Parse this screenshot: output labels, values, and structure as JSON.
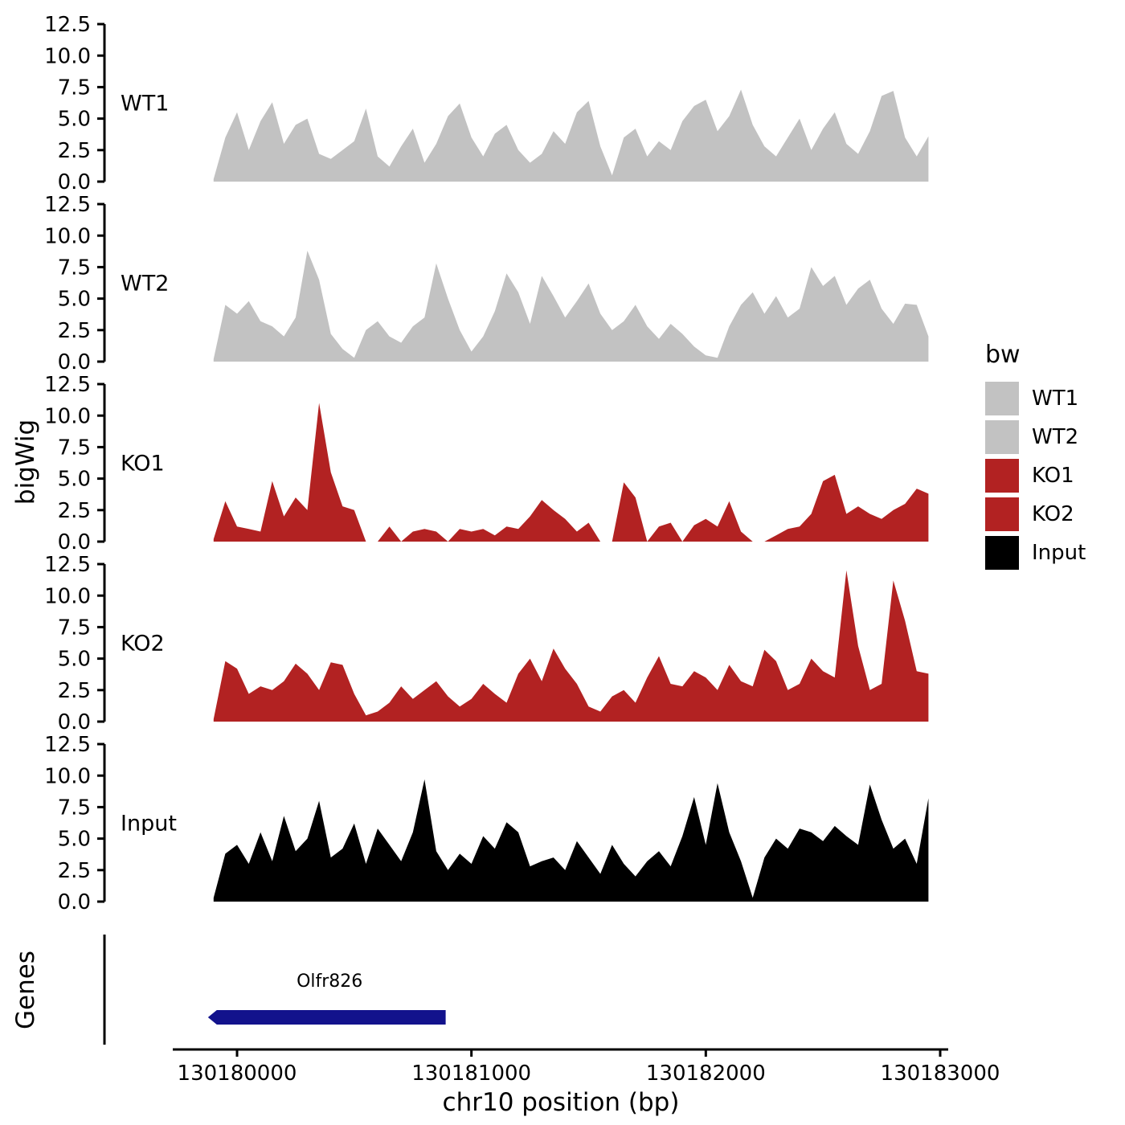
{
  "labels": {
    "y_axis_title": "bigWig",
    "genes_title": "Genes"
  },
  "x_axis": {
    "title": "chr10 position (bp)",
    "tick_positions": [
      130180000,
      130181000,
      130182000,
      130183000
    ],
    "tick_labels": [
      "130180000",
      "130181000",
      "130182000",
      "130183000"
    ]
  },
  "y_axis": {
    "tick_values": [
      0,
      2.5,
      5,
      7.5,
      10,
      12.5
    ],
    "tick_labels": [
      "0.0",
      "2.5",
      "5.0",
      "7.5",
      "10.0",
      "12.5"
    ]
  },
  "legend": {
    "title": "bw",
    "items": [
      {
        "label": "WT1",
        "color": "#c2c2c2"
      },
      {
        "label": "WT2",
        "color": "#c2c2c2"
      },
      {
        "label": "KO1",
        "color": "#b22222"
      },
      {
        "label": "KO2",
        "color": "#b22222"
      },
      {
        "label": "Input",
        "color": "#000000"
      }
    ]
  },
  "chart_data": {
    "type": "area",
    "title": "",
    "xlabel": "chr10 position (bp)",
    "ylabel": "bigWig",
    "ylim": [
      0,
      12.5
    ],
    "xlim": [
      130179700,
      130183100
    ],
    "xticks": [
      130180000,
      130181000,
      130182000,
      130183000
    ],
    "x_start": 130179900,
    "x_step": 50,
    "tracks": [
      {
        "name": "WT1",
        "color": "#c2c2c2",
        "values": [
          0.2,
          3.5,
          5.5,
          2.5,
          4.8,
          6.3,
          3.0,
          4.5,
          5.0,
          2.2,
          1.8,
          2.5,
          3.2,
          5.8,
          2.0,
          1.2,
          2.8,
          4.2,
          1.5,
          3.0,
          5.2,
          6.2,
          3.5,
          2.0,
          3.8,
          4.5,
          2.5,
          1.5,
          2.2,
          4.0,
          3.0,
          5.5,
          6.4,
          2.8,
          0.5,
          3.5,
          4.2,
          2.0,
          3.2,
          2.5,
          4.8,
          6.0,
          6.5,
          4.0,
          5.2,
          7.3,
          4.5,
          2.8,
          2.0,
          3.5,
          5.0,
          2.5,
          4.2,
          5.5,
          3.0,
          2.2,
          4.0,
          6.8,
          7.2,
          3.5,
          2.0,
          3.6
        ]
      },
      {
        "name": "WT2",
        "color": "#c2c2c2",
        "values": [
          0.2,
          4.5,
          3.8,
          4.8,
          3.2,
          2.8,
          2.0,
          3.5,
          8.8,
          6.5,
          2.2,
          1.0,
          0.3,
          2.5,
          3.2,
          2.0,
          1.5,
          2.8,
          3.5,
          7.8,
          5.0,
          2.5,
          0.8,
          2.0,
          4.0,
          7.0,
          5.5,
          3.0,
          6.8,
          5.2,
          3.5,
          4.8,
          6.2,
          3.8,
          2.5,
          3.2,
          4.5,
          2.8,
          1.8,
          3.0,
          2.2,
          1.2,
          0.5,
          0.3,
          2.8,
          4.5,
          5.5,
          3.8,
          5.2,
          3.5,
          4.2,
          7.5,
          6.0,
          6.8,
          4.5,
          5.8,
          6.5,
          4.2,
          3.0,
          4.6,
          4.5,
          2.0
        ]
      },
      {
        "name": "KO1",
        "color": "#b22222",
        "values": [
          0.2,
          3.2,
          1.2,
          1.0,
          0.8,
          4.8,
          2.0,
          3.5,
          2.5,
          11.0,
          5.5,
          2.8,
          2.5,
          0.0,
          0.0,
          1.2,
          0.0,
          0.8,
          1.0,
          0.8,
          0.0,
          1.0,
          0.8,
          1.0,
          0.5,
          1.2,
          1.0,
          2.0,
          3.3,
          2.5,
          1.8,
          0.8,
          1.5,
          0.0,
          0.0,
          4.7,
          3.5,
          0.0,
          1.2,
          1.5,
          0.0,
          1.3,
          1.8,
          1.2,
          3.2,
          0.8,
          0.0,
          0.0,
          0.5,
          1.0,
          1.2,
          2.2,
          4.8,
          5.3,
          2.2,
          2.8,
          2.2,
          1.8,
          2.5,
          3.0,
          4.2,
          3.8
        ]
      },
      {
        "name": "KO2",
        "color": "#b22222",
        "values": [
          0.2,
          4.8,
          4.2,
          2.2,
          2.8,
          2.5,
          3.2,
          4.6,
          3.8,
          2.5,
          4.7,
          4.5,
          2.2,
          0.5,
          0.8,
          1.5,
          2.8,
          1.8,
          2.5,
          3.2,
          2.0,
          1.2,
          1.8,
          3.0,
          2.2,
          1.5,
          3.8,
          5.0,
          3.2,
          5.8,
          4.2,
          3.0,
          1.2,
          0.8,
          2.0,
          2.5,
          1.5,
          3.5,
          5.2,
          3.0,
          2.8,
          4.0,
          3.5,
          2.5,
          4.5,
          3.2,
          2.8,
          5.7,
          4.8,
          2.5,
          3.0,
          5.0,
          4.0,
          3.5,
          12.0,
          6.0,
          2.5,
          3.0,
          11.2,
          8.0,
          4.0,
          3.8
        ]
      },
      {
        "name": "Input",
        "color": "#000000",
        "values": [
          0.3,
          3.8,
          4.5,
          3.0,
          5.5,
          3.2,
          6.8,
          4.0,
          5.0,
          8.0,
          3.5,
          4.2,
          6.2,
          3.0,
          5.8,
          4.5,
          3.2,
          5.5,
          9.7,
          4.0,
          2.5,
          3.8,
          3.0,
          5.2,
          4.2,
          6.3,
          5.5,
          2.8,
          3.2,
          3.5,
          2.5,
          4.8,
          3.5,
          2.2,
          4.5,
          3.0,
          2.0,
          3.2,
          4.0,
          2.8,
          5.2,
          8.3,
          4.5,
          9.4,
          5.5,
          3.2,
          0.3,
          3.5,
          5.0,
          4.2,
          5.8,
          5.5,
          4.8,
          6.0,
          5.2,
          4.5,
          9.3,
          6.5,
          4.2,
          5.0,
          3.0,
          8.2
        ]
      }
    ],
    "genes": [
      {
        "name": "Olfr826",
        "start": 130179900,
        "end": 130180890,
        "strand": "-",
        "color": "#12128c"
      }
    ]
  }
}
